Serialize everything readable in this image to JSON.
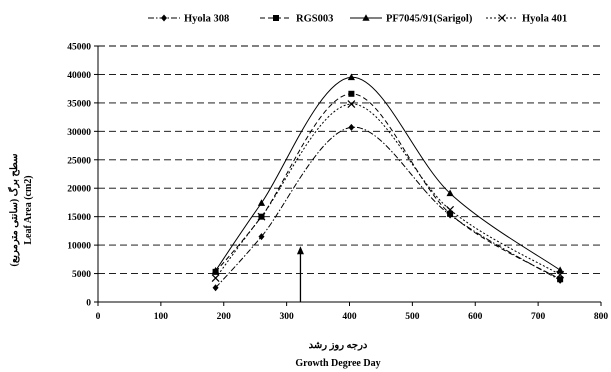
{
  "chart_data": {
    "type": "line",
    "title": "",
    "xlabel_lines": [
      "درجه روز رشد",
      "Growth Degree Day"
    ],
    "ylabel_lines": [
      "سطح برگ (سانتی مترمربع)",
      "Leaf Area (cm2)"
    ],
    "xlim": [
      0,
      800
    ],
    "ylim": [
      0,
      45000
    ],
    "x_ticks": [
      0,
      100,
      200,
      300,
      400,
      500,
      600,
      700,
      800
    ],
    "y_ticks": [
      0,
      5000,
      10000,
      15000,
      20000,
      25000,
      30000,
      35000,
      40000,
      45000
    ],
    "grid": "horizontal-dashed",
    "legend_position": "top",
    "x": [
      187,
      260,
      403,
      560,
      735
    ],
    "series": [
      {
        "name": "Hyola 308",
        "marker": "diamond",
        "dash": "dash-dot",
        "values": [
          2500,
          11500,
          30700,
          15300,
          3800
        ]
      },
      {
        "name": "RGS003",
        "marker": "square",
        "dash": "dashed",
        "values": [
          5300,
          15000,
          36600,
          15500,
          4000
        ]
      },
      {
        "name": "PF7045/91(Sarigol)",
        "marker": "triangle",
        "dash": "solid",
        "values": [
          5500,
          17400,
          39500,
          19100,
          5600
        ]
      },
      {
        "name": "Hyola 401",
        "marker": "x",
        "dash": "dotted",
        "values": [
          4200,
          15000,
          34800,
          16200,
          4800
        ]
      }
    ],
    "annotation": {
      "type": "arrow",
      "x": 322,
      "y_from": 0,
      "y_to": 9800
    }
  }
}
